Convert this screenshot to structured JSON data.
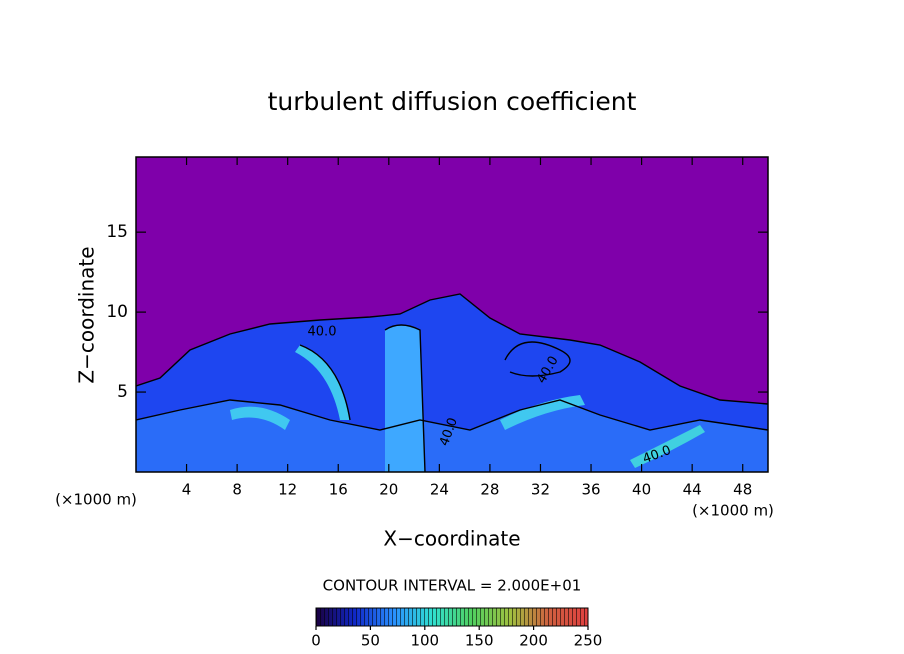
{
  "chart_data": {
    "type": "contour",
    "title": "turbulent diffusion coefficient",
    "x_label": "X−coordinate",
    "y_label": "Z−coordinate",
    "x_unit": "(×1000 m)",
    "xlim": [
      0,
      50
    ],
    "xticks": [
      4,
      8,
      12,
      16,
      20,
      24,
      28,
      32,
      36,
      40,
      44,
      48
    ],
    "ylim": [
      0,
      19.7
    ],
    "yticks": [
      5,
      10,
      15
    ],
    "background_color": "#7f00aa",
    "contour_interval": "CONTOUR INTERVAL = 2.000E+01",
    "contour_labels": [
      "40.0",
      "40.0",
      "40.0",
      "40.0"
    ],
    "colorbar": {
      "lim": [
        0,
        250
      ],
      "ticks": [
        0,
        50,
        100,
        150,
        200,
        250
      ],
      "colors": [
        "#1a0040",
        "#1028c8",
        "#2a90ff",
        "#30e0d0",
        "#50d060",
        "#a0c040",
        "#d06040",
        "#e04040"
      ]
    }
  }
}
